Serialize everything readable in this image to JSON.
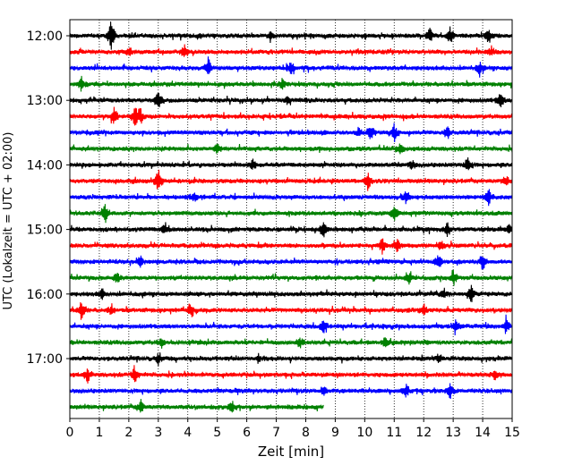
{
  "chart_data": {
    "type": "line",
    "title": "",
    "xlabel": "Zeit  [min]",
    "ylabel": "UTC (Lokalzeit = UTC + 02:00)",
    "xlim": [
      0,
      15
    ],
    "x_ticks": [
      "0",
      "1",
      "2",
      "3",
      "4",
      "5",
      "6",
      "7",
      "8",
      "9",
      "10",
      "11",
      "12",
      "13",
      "14",
      "15"
    ],
    "y_ticks": [
      {
        "label": "12:00",
        "trace_index": 0
      },
      {
        "label": "13:00",
        "trace_index": 4
      },
      {
        "label": "14:00",
        "trace_index": 8
      },
      {
        "label": "15:00",
        "trace_index": 12
      },
      {
        "label": "16:00",
        "trace_index": 16
      },
      {
        "label": "17:00",
        "trace_index": 20
      }
    ],
    "grid": "vertical dotted lines at each minute",
    "trace_minutes_per_line": 15,
    "trace_colors": [
      "#000000",
      "#ff0000",
      "#0000ff",
      "#008000"
    ],
    "traces": [
      {
        "start": "12:00",
        "color": "#000000",
        "end_min": 15,
        "events": [
          [
            1.4,
            1.0
          ],
          [
            12.2,
            0.55
          ],
          [
            12.9,
            0.55
          ],
          [
            14.2,
            0.6
          ],
          [
            6.8,
            0.3
          ]
        ]
      },
      {
        "start": "12:15",
        "color": "#ff0000",
        "end_min": 15,
        "events": [
          [
            3.9,
            0.45
          ],
          [
            2.0,
            0.3
          ],
          [
            14.3,
            0.3
          ]
        ]
      },
      {
        "start": "12:30",
        "color": "#0000ff",
        "end_min": 15,
        "events": [
          [
            4.7,
            0.6
          ],
          [
            7.5,
            0.5
          ],
          [
            13.9,
            0.45
          ]
        ]
      },
      {
        "start": "12:45",
        "color": "#008000",
        "end_min": 15,
        "events": [
          [
            0.4,
            0.55
          ],
          [
            7.2,
            0.3
          ]
        ]
      },
      {
        "start": "13:00",
        "color": "#000000",
        "end_min": 15,
        "events": [
          [
            3.0,
            0.8
          ],
          [
            14.6,
            0.6
          ],
          [
            7.4,
            0.3
          ]
        ]
      },
      {
        "start": "13:15",
        "color": "#ff0000",
        "end_min": 15,
        "events": [
          [
            1.5,
            0.6
          ],
          [
            2.2,
            0.8
          ],
          [
            2.4,
            0.5
          ]
        ]
      },
      {
        "start": "13:30",
        "color": "#0000ff",
        "end_min": 15,
        "events": [
          [
            10.2,
            0.6
          ],
          [
            11.0,
            0.55
          ],
          [
            12.8,
            0.4
          ],
          [
            9.8,
            0.3
          ]
        ]
      },
      {
        "start": "13:45",
        "color": "#008000",
        "end_min": 15,
        "events": [
          [
            5.0,
            0.3
          ],
          [
            11.2,
            0.3
          ]
        ]
      },
      {
        "start": "14:00",
        "color": "#000000",
        "end_min": 15,
        "events": [
          [
            13.5,
            0.6
          ],
          [
            6.2,
            0.3
          ],
          [
            11.6,
            0.3
          ]
        ]
      },
      {
        "start": "14:15",
        "color": "#ff0000",
        "end_min": 15,
        "events": [
          [
            3.0,
            0.9
          ],
          [
            10.1,
            0.6
          ],
          [
            14.8,
            0.35
          ]
        ]
      },
      {
        "start": "14:30",
        "color": "#0000ff",
        "end_min": 15,
        "events": [
          [
            14.2,
            0.6
          ],
          [
            11.4,
            0.35
          ],
          [
            4.2,
            0.3
          ]
        ]
      },
      {
        "start": "14:45",
        "color": "#008000",
        "end_min": 15,
        "events": [
          [
            1.2,
            0.7
          ],
          [
            11.0,
            0.6
          ]
        ]
      },
      {
        "start": "15:00",
        "color": "#000000",
        "end_min": 15,
        "events": [
          [
            8.6,
            0.5
          ],
          [
            12.8,
            0.45
          ],
          [
            14.9,
            0.4
          ],
          [
            3.2,
            0.3
          ]
        ]
      },
      {
        "start": "15:15",
        "color": "#ff0000",
        "end_min": 15,
        "events": [
          [
            10.6,
            0.55
          ],
          [
            11.1,
            0.45
          ],
          [
            12.6,
            0.3
          ]
        ]
      },
      {
        "start": "15:30",
        "color": "#0000ff",
        "end_min": 15,
        "events": [
          [
            12.5,
            0.5
          ],
          [
            14.0,
            0.6
          ],
          [
            2.4,
            0.35
          ]
        ]
      },
      {
        "start": "15:45",
        "color": "#008000",
        "end_min": 15,
        "events": [
          [
            13.0,
            0.55
          ],
          [
            1.6,
            0.35
          ],
          [
            11.5,
            0.3
          ]
        ]
      },
      {
        "start": "16:00",
        "color": "#000000",
        "end_min": 15,
        "events": [
          [
            13.6,
            0.6
          ],
          [
            1.1,
            0.35
          ],
          [
            12.7,
            0.3
          ]
        ]
      },
      {
        "start": "16:15",
        "color": "#ff0000",
        "end_min": 15,
        "events": [
          [
            0.4,
            0.7
          ],
          [
            4.1,
            0.5
          ],
          [
            12.0,
            0.4
          ],
          [
            1.4,
            0.3
          ]
        ]
      },
      {
        "start": "16:30",
        "color": "#0000ff",
        "end_min": 15,
        "events": [
          [
            8.6,
            0.45
          ],
          [
            13.1,
            0.45
          ],
          [
            14.8,
            0.5
          ]
        ]
      },
      {
        "start": "16:45",
        "color": "#008000",
        "end_min": 15,
        "events": [
          [
            10.7,
            0.5
          ],
          [
            7.8,
            0.35
          ],
          [
            3.1,
            0.3
          ]
        ]
      },
      {
        "start": "17:00",
        "color": "#000000",
        "end_min": 15,
        "events": [
          [
            3.0,
            0.3
          ],
          [
            12.5,
            0.3
          ],
          [
            6.4,
            0.25
          ]
        ]
      },
      {
        "start": "17:15",
        "color": "#ff0000",
        "end_min": 15,
        "events": [
          [
            0.6,
            0.5
          ],
          [
            2.2,
            0.6
          ],
          [
            14.4,
            0.3
          ]
        ]
      },
      {
        "start": "17:30",
        "color": "#0000ff",
        "end_min": 15,
        "events": [
          [
            11.4,
            0.5
          ],
          [
            12.9,
            0.55
          ],
          [
            8.6,
            0.3
          ]
        ]
      },
      {
        "start": "17:45",
        "color": "#008000",
        "end_min": 8.6,
        "events": [
          [
            2.4,
            0.45
          ],
          [
            5.5,
            0.4
          ]
        ]
      }
    ]
  }
}
